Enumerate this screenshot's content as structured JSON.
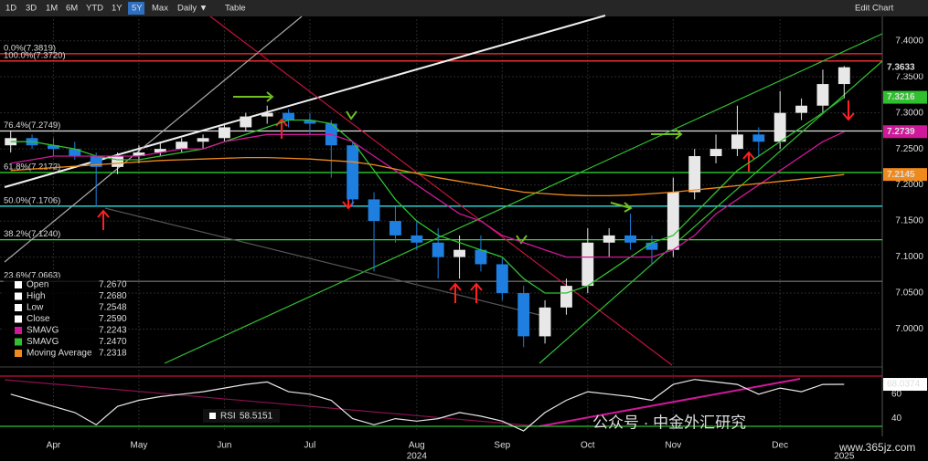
{
  "toolbar": {
    "buttons": [
      "1D",
      "3D",
      "1M",
      "6M",
      "YTD",
      "1Y",
      "5Y",
      "Max",
      "Daily ▼",
      "Table"
    ],
    "active": "5Y",
    "edit": "Edit Chart"
  },
  "chart_data": {
    "type": "candlestick",
    "open": [
      7.255,
      7.265,
      7.255,
      7.25,
      7.24,
      7.225,
      7.24,
      7.245,
      7.25,
      7.26,
      7.265,
      7.28,
      7.295,
      7.3,
      7.29,
      7.285,
      7.255,
      7.18,
      7.15,
      7.13,
      7.12,
      7.1,
      7.11,
      7.09,
      7.05,
      6.99,
      7.03,
      7.06,
      7.12,
      7.13,
      7.12,
      7.11,
      7.19,
      7.24,
      7.25,
      7.27,
      7.26,
      7.3,
      7.31,
      7.34
    ],
    "high": [
      7.275,
      7.27,
      7.265,
      7.26,
      7.245,
      7.245,
      7.255,
      7.26,
      7.265,
      7.27,
      7.285,
      7.3,
      7.31,
      7.305,
      7.3,
      7.29,
      7.26,
      7.19,
      7.17,
      7.15,
      7.14,
      7.13,
      7.13,
      7.1,
      7.06,
      7.04,
      7.07,
      7.14,
      7.14,
      7.16,
      7.13,
      7.21,
      7.25,
      7.27,
      7.31,
      7.28,
      7.33,
      7.32,
      7.36,
      7.365
    ],
    "low": [
      7.245,
      7.25,
      7.24,
      7.235,
      7.17,
      7.215,
      7.23,
      7.24,
      7.245,
      7.25,
      7.26,
      7.275,
      7.285,
      7.28,
      7.27,
      7.21,
      7.17,
      7.08,
      7.12,
      7.11,
      7.07,
      7.07,
      7.08,
      7.04,
      6.975,
      6.98,
      7.02,
      7.05,
      7.1,
      7.11,
      7.09,
      7.1,
      7.18,
      7.23,
      7.24,
      7.24,
      7.25,
      7.29,
      7.3,
      7.32
    ],
    "close": [
      7.265,
      7.255,
      7.25,
      7.24,
      7.225,
      7.24,
      7.245,
      7.25,
      7.26,
      7.265,
      7.28,
      7.295,
      7.3,
      7.29,
      7.285,
      7.255,
      7.18,
      7.15,
      7.13,
      7.12,
      7.1,
      7.11,
      7.09,
      7.05,
      6.99,
      7.03,
      7.06,
      7.12,
      7.13,
      7.12,
      7.11,
      7.19,
      7.24,
      7.25,
      7.27,
      7.26,
      7.3,
      7.31,
      7.34,
      7.3633
    ],
    "up_color": "#e8e8e8",
    "down_color": "#1f7fe0",
    "series": [
      {
        "name": "SMAVG",
        "color": "#2fbf2f",
        "values": [
          7.26,
          7.26,
          7.255,
          7.25,
          7.24,
          7.235,
          7.235,
          7.24,
          7.245,
          7.25,
          7.26,
          7.27,
          7.28,
          7.29,
          7.29,
          7.285,
          7.26,
          7.22,
          7.18,
          7.15,
          7.13,
          7.12,
          7.11,
          7.1,
          7.07,
          7.05,
          7.05,
          7.06,
          7.08,
          7.1,
          7.12,
          7.13,
          7.16,
          7.19,
          7.22,
          7.24,
          7.26,
          7.28,
          7.3,
          7.3216
        ]
      },
      {
        "name": "SMAVG",
        "color": "#d0189a",
        "values": [
          7.23,
          7.235,
          7.24,
          7.24,
          7.24,
          7.24,
          7.24,
          7.245,
          7.25,
          7.25,
          7.26,
          7.265,
          7.27,
          7.27,
          7.27,
          7.27,
          7.26,
          7.24,
          7.22,
          7.2,
          7.18,
          7.16,
          7.15,
          7.13,
          7.12,
          7.11,
          7.1,
          7.1,
          7.1,
          7.1,
          7.1,
          7.11,
          7.13,
          7.16,
          7.18,
          7.2,
          7.22,
          7.24,
          7.26,
          7.2739
        ]
      },
      {
        "name": "Moving Average",
        "color": "#f08a1c",
        "values": [
          7.22,
          7.222,
          7.224,
          7.226,
          7.228,
          7.23,
          7.232,
          7.234,
          7.235,
          7.236,
          7.237,
          7.238,
          7.238,
          7.237,
          7.236,
          7.234,
          7.232,
          7.228,
          7.222,
          7.216,
          7.21,
          7.205,
          7.2,
          7.195,
          7.19,
          7.188,
          7.186,
          7.185,
          7.185,
          7.186,
          7.188,
          7.19,
          7.193,
          7.196,
          7.199,
          7.202,
          7.205,
          7.208,
          7.211,
          7.2145
        ]
      }
    ],
    "xlim": [
      -0.5,
      39.5
    ],
    "xticks": [
      {
        "value": 2,
        "label": "Apr"
      },
      {
        "value": 6,
        "label": "May"
      },
      {
        "value": 10,
        "label": "Jun"
      },
      {
        "value": 14,
        "label": "Jul"
      },
      {
        "value": 19,
        "label": "Aug"
      },
      {
        "value": 23,
        "label": "Sep"
      },
      {
        "value": 27,
        "label": "Oct"
      },
      {
        "value": 31,
        "label": "Nov"
      },
      {
        "value": 36,
        "label": "Dec"
      }
    ],
    "year_ticks": [
      {
        "value": 19,
        "label": "2024"
      },
      {
        "value": 39,
        "label": "2025"
      }
    ],
    "ylim": [
      6.95,
      7.43
    ],
    "yticks": [
      {
        "value": 7.0,
        "label": "7.0000"
      },
      {
        "value": 7.05,
        "label": "7.0500"
      },
      {
        "value": 7.1,
        "label": "7.1000"
      },
      {
        "value": 7.15,
        "label": "7.1500"
      },
      {
        "value": 7.2,
        "label": "7.2000"
      },
      {
        "value": 7.25,
        "label": "7.2500"
      },
      {
        "value": 7.3,
        "label": "7.3000"
      },
      {
        "value": 7.35,
        "label": "7.3500"
      },
      {
        "value": 7.4,
        "label": "7.4000"
      }
    ],
    "fib_levels": [
      {
        "value": 7.382,
        "label": "0.0%(7.3819)",
        "color": "#ff3030"
      },
      {
        "value": 7.372,
        "label": "100.0%(7.3720)",
        "color": "#ff3030"
      },
      {
        "value": 7.2749,
        "label": "76.4%(7.2749)",
        "color": "#e0e0e0"
      },
      {
        "value": 7.2172,
        "label": "61.8%(7.2172)",
        "color": "#30e030"
      },
      {
        "value": 7.1706,
        "label": "50.0%(7.1706)",
        "color": "#30e0e0"
      },
      {
        "value": 7.124,
        "label": "38.2%(7.1240)",
        "color": "#30e030"
      },
      {
        "value": 7.0663,
        "label": "23.6%(7.0663)",
        "color": "#666666"
      }
    ],
    "legend": [
      {
        "name": "Open",
        "value": "7.2670",
        "color": "#ffffff"
      },
      {
        "name": "High",
        "value": "7.2680",
        "color": "#ffffff"
      },
      {
        "name": "Low",
        "value": "7.2548",
        "color": "#ffffff"
      },
      {
        "name": "Close",
        "value": "7.2590",
        "color": "#ffffff"
      },
      {
        "name": "SMAVG",
        "value": "7.2243",
        "color": "#d0189a"
      },
      {
        "name": "SMAVG",
        "value": "7.2470",
        "color": "#2fbf2f"
      },
      {
        "name": "Moving Average",
        "value": "7.2318",
        "color": "#f08a1c"
      }
    ],
    "rsi": {
      "name": "RSI",
      "legend_value": "58.5151",
      "color": "#e8e8e8",
      "values": [
        60,
        55,
        50,
        45,
        35,
        50,
        55,
        58,
        60,
        62,
        65,
        68,
        70,
        62,
        60,
        55,
        40,
        35,
        40,
        38,
        40,
        45,
        42,
        38,
        30,
        45,
        55,
        62,
        60,
        58,
        55,
        68,
        72,
        70,
        68,
        60,
        65,
        62,
        68,
        68.0374
      ],
      "ylim": [
        30,
        80
      ],
      "yticks": [
        40,
        60
      ]
    }
  },
  "watermark": {
    "text": "公众号 · 中金外汇研究",
    "url": "www.365jz.com"
  }
}
